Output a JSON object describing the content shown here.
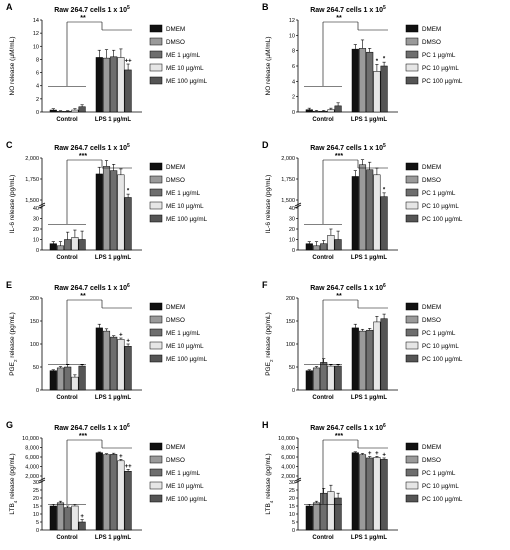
{
  "colors": {
    "DMEM": "#111111",
    "DMSO": "#9a9a9a",
    "C1": "#6e6e6e",
    "C10": "#e6e6e6",
    "C100": "#555555"
  },
  "chart_data": [
    {
      "type": "bar",
      "panel": "A",
      "title_main": "Raw 264.7 cells 1 x 10",
      "title_sup": "5",
      "ylabel": "NO release (µM/mL)",
      "ylabel_sub": "",
      "ylabel_tail": "",
      "ylim": [
        0,
        14
      ],
      "yticks": [
        "0",
        "2",
        "4",
        "6",
        "8",
        "10",
        "12",
        "14"
      ],
      "ytick_values": [
        0,
        2,
        4,
        6,
        8,
        10,
        12,
        14
      ],
      "categories": [
        "Control",
        "LPS 1 µg/mL"
      ],
      "legend": [
        "DMEM",
        "DMSO",
        "ME 1 µg/mL",
        "ME 10 µg/mL",
        "ME 100 µg/mL"
      ],
      "series": [
        {
          "name": "DMEM",
          "values": [
            0.3,
            8.3
          ],
          "errors": [
            0.2,
            1.1
          ]
        },
        {
          "name": "DMSO",
          "values": [
            0.1,
            8.2
          ],
          "errors": [
            0.1,
            1.3
          ]
        },
        {
          "name": "ME 1 µg/mL",
          "values": [
            0.1,
            8.4
          ],
          "errors": [
            0.1,
            1.0
          ]
        },
        {
          "name": "ME 10 µg/mL",
          "values": [
            0.3,
            8.3
          ],
          "errors": [
            0.2,
            1.3
          ]
        },
        {
          "name": "ME 100 µg/mL",
          "values": [
            0.8,
            6.4
          ],
          "errors": [
            0.3,
            0.9
          ]
        }
      ],
      "marks": [
        "",
        "",
        "",
        "",
        "++"
      ],
      "sig": "**"
    },
    {
      "type": "bar",
      "panel": "B",
      "title_main": "Raw 264.7 cells 1 x 10",
      "title_sup": "5",
      "ylabel": "NO release (µM/mL)",
      "ylabel_sub": "",
      "ylabel_tail": "",
      "ylim": [
        0,
        12
      ],
      "yticks": [
        "0",
        "2",
        "4",
        "6",
        "8",
        "10",
        "12"
      ],
      "ytick_values": [
        0,
        2,
        4,
        6,
        8,
        10,
        12
      ],
      "categories": [
        "Control",
        "LPS 1 µg/mL"
      ],
      "legend": [
        "DMEM",
        "DMSO",
        "PC 1 µg/mL",
        "PC 10 µg/mL",
        "PC 100 µg/mL"
      ],
      "series": [
        {
          "name": "DMEM",
          "values": [
            0.3,
            8.2
          ],
          "errors": [
            0.2,
            0.6
          ]
        },
        {
          "name": "DMSO",
          "values": [
            0.1,
            8.3
          ],
          "errors": [
            0.1,
            1.1
          ]
        },
        {
          "name": "PC 1 µg/mL",
          "values": [
            0.1,
            7.8
          ],
          "errors": [
            0.1,
            0.5
          ]
        },
        {
          "name": "PC 10 µg/mL",
          "values": [
            0.3,
            5.3
          ],
          "errors": [
            0.2,
            0.9
          ]
        },
        {
          "name": "PC 100 µg/mL",
          "values": [
            0.8,
            6.0
          ],
          "errors": [
            0.4,
            0.5
          ]
        }
      ],
      "marks": [
        "",
        "",
        "",
        "*",
        "*"
      ],
      "sig": "**"
    },
    {
      "type": "bar",
      "panel": "C",
      "title_main": "Raw 264.7 cells 1 x 10",
      "title_sup": "5",
      "ylabel": "IL-6 release (pg/mL)",
      "ylabel_sub": "",
      "ylabel_tail": "",
      "broken": true,
      "ylim": [
        0,
        2000
      ],
      "yticks": [
        "0",
        "10",
        "20",
        "30",
        "40",
        "1,500",
        "1,750",
        "2,000"
      ],
      "categories": [
        "Control",
        "LPS 1 µg/mL"
      ],
      "legend": [
        "DMEM",
        "DMSO",
        "ME 1 µg/mL",
        "ME 10 µg/mL",
        "ME 100 µg/mL"
      ],
      "series": [
        {
          "name": "DMEM",
          "values": [
            6,
            1810
          ],
          "errors": [
            2,
            80
          ]
        },
        {
          "name": "DMSO",
          "values": [
            4,
            1900
          ],
          "errors": [
            4,
            70
          ]
        },
        {
          "name": "ME 1 µg/mL",
          "values": [
            10,
            1850
          ],
          "errors": [
            7,
            75
          ]
        },
        {
          "name": "ME 10 µg/mL",
          "values": [
            12,
            1800
          ],
          "errors": [
            7,
            70
          ]
        },
        {
          "name": "ME 100 µg/mL",
          "values": [
            10,
            1530
          ],
          "errors": [
            8,
            40
          ]
        }
      ],
      "marks": [
        "",
        "",
        "",
        "",
        "*"
      ],
      "sig": "***"
    },
    {
      "type": "bar",
      "panel": "D",
      "title_main": "Raw 264.7 cells 1 x 10",
      "title_sup": "5",
      "ylabel": "IL-6 release (pg/mL)",
      "ylabel_sub": "",
      "ylabel_tail": "",
      "broken": true,
      "ylim": [
        0,
        2000
      ],
      "yticks": [
        "0",
        "10",
        "20",
        "30",
        "40",
        "1,500",
        "1,750",
        "2,000"
      ],
      "categories": [
        "Control",
        "LPS 1 µg/mL"
      ],
      "legend": [
        "DMEM",
        "DMSO",
        "PC 1 µg/mL",
        "PC 10 µg/mL",
        "PC 100 µg/mL"
      ],
      "series": [
        {
          "name": "DMEM",
          "values": [
            6,
            1780
          ],
          "errors": [
            2,
            70
          ]
        },
        {
          "name": "DMSO",
          "values": [
            4,
            1920
          ],
          "errors": [
            4,
            60
          ]
        },
        {
          "name": "PC 1 µg/mL",
          "values": [
            6,
            1860
          ],
          "errors": [
            3,
            90
          ]
        },
        {
          "name": "PC 10 µg/mL",
          "values": [
            14,
            1800
          ],
          "errors": [
            6,
            80
          ]
        },
        {
          "name": "PC 100 µg/mL",
          "values": [
            10,
            1540
          ],
          "errors": [
            8,
            45
          ]
        }
      ],
      "marks": [
        "",
        "",
        "",
        "",
        "*"
      ],
      "sig": "***"
    },
    {
      "type": "bar",
      "panel": "E",
      "title_main": "Raw 264.7 cells 1 x 10",
      "title_sup": "6",
      "ylabel": "PGE",
      "ylabel_sub": "2",
      "ylabel_tail": " release (pg/mL)",
      "ylim": [
        0,
        200
      ],
      "yticks": [
        "0",
        "50",
        "100",
        "150",
        "200"
      ],
      "ytick_values": [
        0,
        50,
        100,
        150,
        200
      ],
      "categories": [
        "Control",
        "LPS 1 µg/mL"
      ],
      "legend": [
        "DMEM",
        "DMSO",
        "ME 1 µg/mL",
        "ME 10 µg/mL",
        "ME 100 µg/mL"
      ],
      "series": [
        {
          "name": "DMEM",
          "values": [
            42,
            135
          ],
          "errors": [
            2,
            8
          ]
        },
        {
          "name": "DMSO",
          "values": [
            48,
            128
          ],
          "errors": [
            3,
            5
          ]
        },
        {
          "name": "ME 1 µg/mL",
          "values": [
            50,
            115
          ],
          "errors": [
            5,
            3
          ]
        },
        {
          "name": "ME 10 µg/mL",
          "values": [
            28,
            110
          ],
          "errors": [
            5,
            3
          ]
        },
        {
          "name": "ME 100 µg/mL",
          "values": [
            52,
            95
          ],
          "errors": [
            3,
            5
          ]
        }
      ],
      "marks": [
        "",
        "",
        "",
        "+",
        "+"
      ],
      "sig": "**"
    },
    {
      "type": "bar",
      "panel": "F",
      "title_main": "Raw 264.7 cells 1 x 10",
      "title_sup": "6",
      "ylabel": "PGE",
      "ylabel_sub": "2",
      "ylabel_tail": " release (pg/mL)",
      "ylim": [
        0,
        200
      ],
      "yticks": [
        "0",
        "50",
        "100",
        "150",
        "200"
      ],
      "ytick_values": [
        0,
        50,
        100,
        150,
        200
      ],
      "categories": [
        "Control",
        "LPS 1 µg/mL"
      ],
      "legend": [
        "DMEM",
        "DMSO",
        "PC 1 µg/mL",
        "PC 10 µg/mL",
        "PC 100 µg/mL"
      ],
      "series": [
        {
          "name": "DMEM",
          "values": [
            42,
            135
          ],
          "errors": [
            2,
            8
          ]
        },
        {
          "name": "DMSO",
          "values": [
            48,
            128
          ],
          "errors": [
            3,
            4
          ]
        },
        {
          "name": "PC 1 µg/mL",
          "values": [
            60,
            130
          ],
          "errors": [
            8,
            4
          ]
        },
        {
          "name": "PC 10 µg/mL",
          "values": [
            52,
            148
          ],
          "errors": [
            3,
            12
          ]
        },
        {
          "name": "PC 100 µg/mL",
          "values": [
            52,
            155
          ],
          "errors": [
            3,
            10
          ]
        }
      ],
      "marks": [
        "",
        "",
        "",
        "",
        ""
      ],
      "sig": "**"
    },
    {
      "type": "bar",
      "panel": "G",
      "title_main": "Raw 264.7 cells 1 x 10",
      "title_sup": "6",
      "ylabel": "LTB",
      "ylabel_sub": "4",
      "ylabel_tail": " release (pg/mL)",
      "broken": true,
      "ylim": [
        0,
        10000
      ],
      "yticks": [
        "0",
        "5",
        "10",
        "15",
        "20",
        "25",
        "30",
        "2,000",
        "4,000",
        "6,000",
        "8,000",
        "10,000"
      ],
      "categories": [
        "Control",
        "LPS 1 µg/mL"
      ],
      "legend": [
        "DMEM",
        "DMSO",
        "ME 1 µg/mL",
        "ME 10 µg/mL",
        "ME 100 µg/mL"
      ],
      "series": [
        {
          "name": "DMEM",
          "values": [
            15,
            6900
          ],
          "errors": [
            1,
            150
          ]
        },
        {
          "name": "DMSO",
          "values": [
            17,
            6500
          ],
          "errors": [
            1,
            200
          ]
        },
        {
          "name": "ME 1 µg/mL",
          "values": [
            14,
            6550
          ],
          "errors": [
            1,
            250
          ]
        },
        {
          "name": "ME 10 µg/mL",
          "values": [
            15,
            5200
          ],
          "errors": [
            1,
            300
          ]
        },
        {
          "name": "ME 100 µg/mL",
          "values": [
            5,
            3000
          ],
          "errors": [
            1.5,
            400
          ]
        }
      ],
      "marks": [
        "",
        "",
        "",
        "+",
        "++"
      ],
      "ctrl_marks": [
        "",
        "",
        "",
        "",
        "+"
      ],
      "sig": "***"
    },
    {
      "type": "bar",
      "panel": "H",
      "title_main": "Raw 264.7 cells 1 x 10",
      "title_sup": "6",
      "ylabel": "LTB",
      "ylabel_sub": "4",
      "ylabel_tail": " release (pg/mL)",
      "broken": true,
      "ylim": [
        0,
        10000
      ],
      "yticks": [
        "0",
        "5",
        "10",
        "15",
        "20",
        "25",
        "30",
        "2,000",
        "4,000",
        "6,000",
        "8,000",
        "10,000"
      ],
      "categories": [
        "Control",
        "LPS 1 µg/mL"
      ],
      "legend": [
        "DMEM",
        "DMSO",
        "PC 1 µg/mL",
        "PC 10 µg/mL",
        "PC 100 µg/mL"
      ],
      "series": [
        {
          "name": "DMEM",
          "values": [
            15,
            6900
          ],
          "errors": [
            1,
            200
          ]
        },
        {
          "name": "DMSO",
          "values": [
            17,
            6500
          ],
          "errors": [
            1,
            250
          ]
        },
        {
          "name": "PC 1 µg/mL",
          "values": [
            23,
            5800
          ],
          "errors": [
            3,
            300
          ]
        },
        {
          "name": "PC 10 µg/mL",
          "values": [
            24,
            5900
          ],
          "errors": [
            4,
            250
          ]
        },
        {
          "name": "PC 100 µg/mL",
          "values": [
            20,
            5500
          ],
          "errors": [
            3,
            300
          ]
        }
      ],
      "marks": [
        "",
        "",
        "+",
        "+",
        "+"
      ],
      "sig": "***"
    }
  ]
}
